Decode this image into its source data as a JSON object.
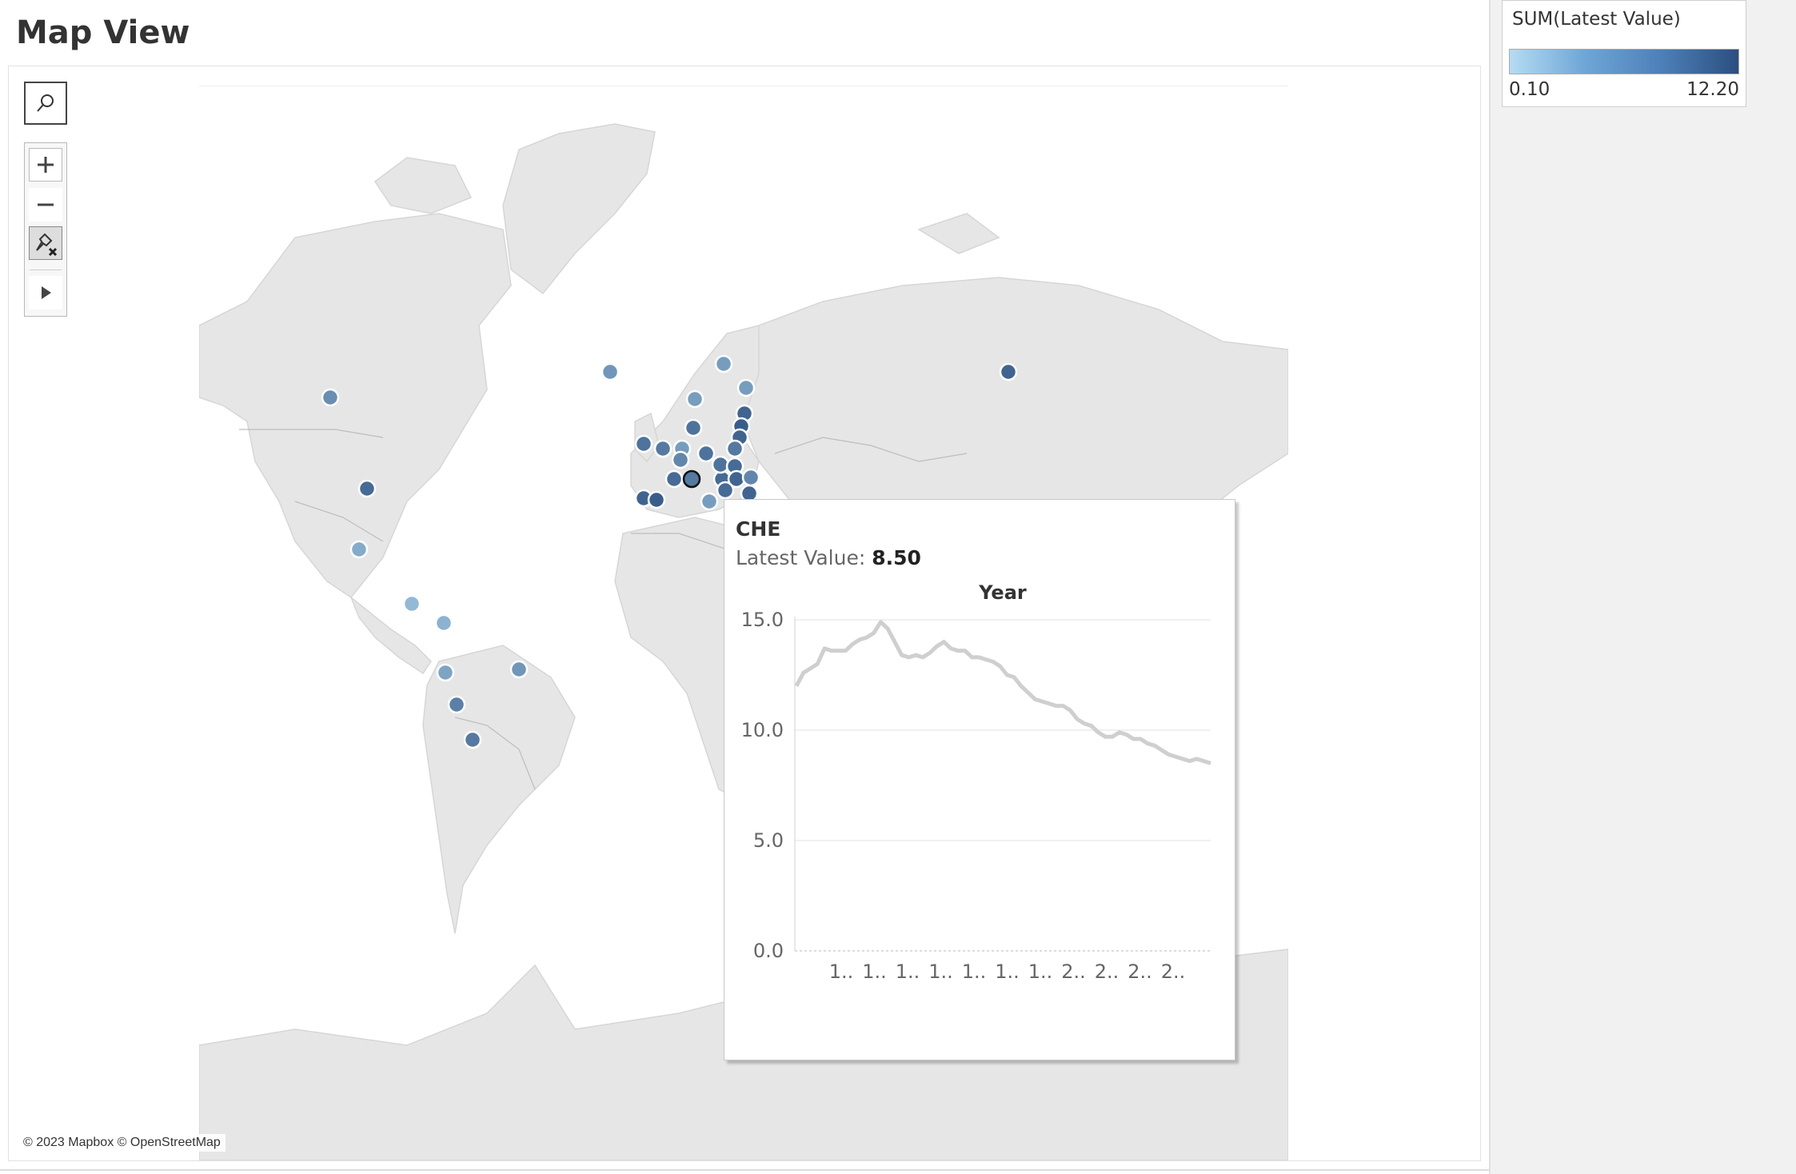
{
  "page": {
    "title": "Map View"
  },
  "map": {
    "attribution": "© 2023 Mapbox © OpenStreetMap",
    "toolbar": {
      "search_icon": "search-icon",
      "zoom_in_icon": "plus-icon",
      "zoom_out_icon": "minus-icon",
      "unpin_icon": "unpin-icon",
      "play_icon": "play-icon"
    },
    "selected_mark": "CHE",
    "mark_levels": [
      {
        "id": "canada",
        "level": 0.55
      },
      {
        "id": "usa",
        "level": 0.8
      },
      {
        "id": "mexico",
        "level": 0.35
      },
      {
        "id": "costa-rica",
        "level": 0.25
      },
      {
        "id": "colombia",
        "level": 0.3
      },
      {
        "id": "peru",
        "level": 0.4
      },
      {
        "id": "brazil",
        "level": 0.5
      },
      {
        "id": "chile",
        "level": 0.65
      },
      {
        "id": "argentina",
        "level": 0.7
      },
      {
        "id": "iceland",
        "level": 0.5
      },
      {
        "id": "norway",
        "level": 0.45
      },
      {
        "id": "finland",
        "level": 0.45
      },
      {
        "id": "sweden",
        "level": 0.45
      },
      {
        "id": "russia",
        "level": 0.85
      },
      {
        "id": "estonia",
        "level": 0.85
      },
      {
        "id": "latvia",
        "level": 0.9
      },
      {
        "id": "lithuania",
        "level": 0.85
      },
      {
        "id": "denmark",
        "level": 0.75
      },
      {
        "id": "ireland",
        "level": 0.75
      },
      {
        "id": "uk",
        "level": 0.7
      },
      {
        "id": "netherlands",
        "level": 0.45
      },
      {
        "id": "belgium",
        "level": 0.6
      },
      {
        "id": "germany",
        "level": 0.75
      },
      {
        "id": "poland",
        "level": 0.7
      },
      {
        "id": "france",
        "level": 0.8
      },
      {
        "id": "che",
        "level": 0.7
      },
      {
        "id": "austria",
        "level": 0.8
      },
      {
        "id": "czech",
        "level": 0.75
      },
      {
        "id": "slovakia",
        "level": 0.8
      },
      {
        "id": "hungary",
        "level": 0.85
      },
      {
        "id": "slovenia",
        "level": 0.8
      },
      {
        "id": "italy",
        "level": 0.45
      },
      {
        "id": "portugal",
        "level": 0.85
      },
      {
        "id": "spain",
        "level": 0.9
      },
      {
        "id": "greece",
        "level": 0.85
      },
      {
        "id": "luxembourg",
        "level": 0.6
      }
    ]
  },
  "legend": {
    "title": "SUM(Latest Value)",
    "min_label": "0.10",
    "max_label": "12.20",
    "colors": [
      "#b4dcf2",
      "#2b4f7f"
    ]
  },
  "tooltip": {
    "country": "CHE",
    "value_label": "Latest Value:",
    "value": "8.50"
  },
  "chart_data": {
    "type": "line",
    "title": "Year",
    "xlabel": "",
    "ylabel": "",
    "ylim": [
      0,
      15
    ],
    "yticks": [
      "15.0",
      "10.0",
      "5.0",
      "0.0"
    ],
    "x_tick_labels": [
      "1..",
      "1..",
      "1..",
      "1..",
      "1..",
      "1..",
      "1..",
      "2..",
      "2..",
      "2..",
      "2.."
    ],
    "series": [
      {
        "color": "#cfcfcf",
        "values": [
          12.0,
          12.6,
          12.8,
          13.0,
          13.7,
          13.6,
          13.6,
          13.6,
          13.9,
          14.1,
          14.2,
          14.4,
          14.9,
          14.6,
          14.0,
          13.4,
          13.3,
          13.4,
          13.3,
          13.5,
          13.8,
          14.0,
          13.7,
          13.6,
          13.6,
          13.3,
          13.3,
          13.2,
          13.1,
          12.9,
          12.5,
          12.4,
          12.0,
          11.7,
          11.4,
          11.3,
          11.2,
          11.1,
          11.1,
          10.9,
          10.5,
          10.3,
          10.2,
          9.9,
          9.7,
          9.7,
          9.9,
          9.8,
          9.6,
          9.6,
          9.4,
          9.3,
          9.1,
          8.9,
          8.8,
          8.7,
          8.6,
          8.7,
          8.6,
          8.5
        ]
      }
    ],
    "grid": true
  }
}
